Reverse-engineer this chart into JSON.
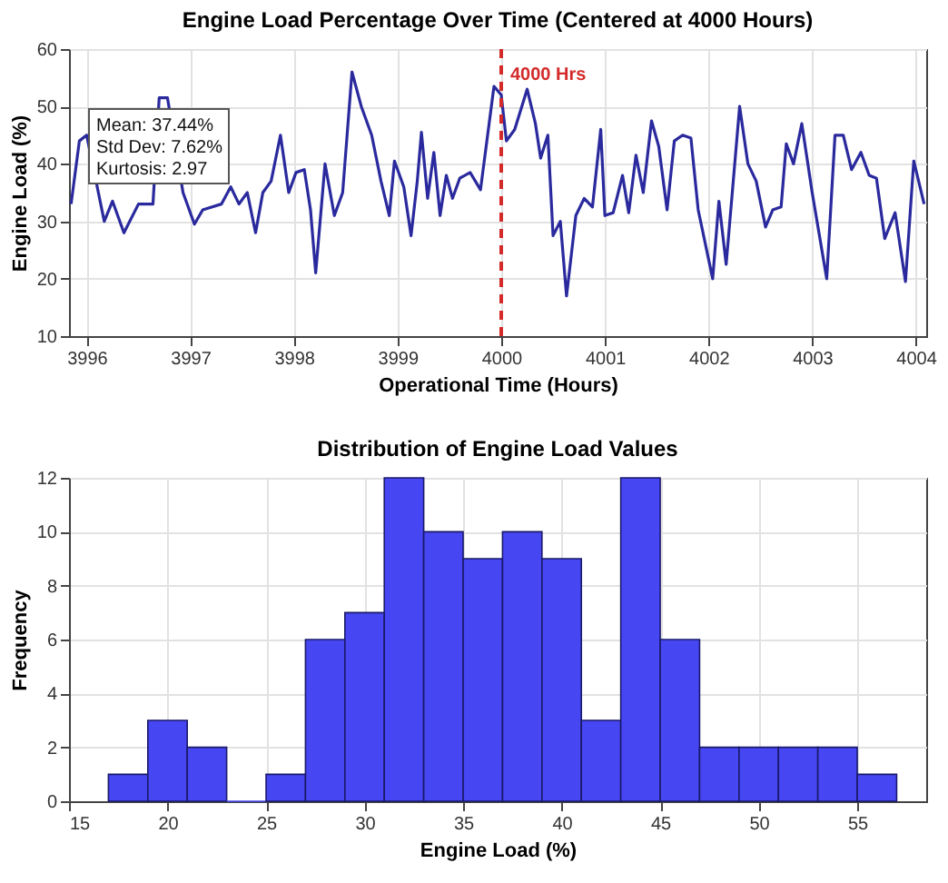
{
  "chart_data": [
    {
      "type": "line",
      "title": "Engine Load Percentage Over Time (Centered at 4000 Hours)",
      "xlabel": "Operational Time (Hours)",
      "ylabel": "Engine Load (%)",
      "x": [
        3995.85,
        3995.93,
        3996.0,
        3996.08,
        3996.17,
        3996.25,
        3996.36,
        3996.42,
        3996.5,
        3996.58,
        3996.64,
        3996.7,
        3996.78,
        3996.85,
        3996.93,
        3997.04,
        3997.12,
        3997.2,
        3997.3,
        3997.39,
        3997.47,
        3997.55,
        3997.63,
        3997.7,
        3997.78,
        3997.87,
        3997.95,
        3998.02,
        3998.1,
        3998.16,
        3998.21,
        3998.3,
        3998.39,
        3998.47,
        3998.56,
        3998.65,
        3998.75,
        3998.84,
        3998.92,
        3998.97,
        3999.06,
        3999.13,
        3999.19,
        3999.23,
        3999.29,
        3999.35,
        3999.41,
        3999.47,
        3999.53,
        3999.6,
        3999.7,
        3999.8,
        3999.93,
        4000.0,
        4000.05,
        4000.13,
        4000.25,
        4000.33,
        4000.38,
        4000.45,
        4000.5,
        4000.57,
        4000.63,
        4000.72,
        4000.8,
        4000.88,
        4000.96,
        4001.0,
        4001.08,
        4001.17,
        4001.23,
        4001.3,
        4001.37,
        4001.45,
        4001.52,
        4001.6,
        4001.67,
        4001.75,
        4001.83,
        4001.9,
        4002.04,
        4002.1,
        4002.17,
        4002.3,
        4002.38,
        4002.46,
        4002.55,
        4002.62,
        4002.7,
        4002.75,
        4002.82,
        4002.9,
        4003.0,
        4003.14,
        4003.22,
        4003.3,
        4003.38,
        4003.47,
        4003.55,
        4003.62,
        4003.7,
        4003.8,
        4003.9,
        4003.98,
        4004.08
      ],
      "series": [
        {
          "color": "#2a2a9e",
          "values": [
            33,
            44,
            45,
            null,
            30,
            33.5,
            28,
            null,
            33,
            null,
            33,
            51.5,
            51.5,
            null,
            35,
            29.5,
            32,
            null,
            33,
            36,
            33,
            35,
            28,
            35,
            37,
            45,
            35,
            38.5,
            39,
            32,
            21,
            40,
            31,
            35,
            56,
            50,
            45,
            37,
            31,
            40.5,
            36,
            27.5,
            37,
            45.5,
            34,
            42,
            31,
            38,
            34,
            37.5,
            38.5,
            35.5,
            53.5,
            52,
            44,
            46,
            53,
            47,
            41,
            45,
            27.5,
            30,
            17,
            31,
            34,
            32.5,
            46,
            31,
            31.5,
            38,
            31.5,
            41.5,
            35,
            47.5,
            43,
            32,
            44,
            45,
            44.5,
            32,
            20,
            33.5,
            22.5,
            50,
            40,
            37,
            29,
            32,
            32.5,
            43.5,
            40,
            47,
            35,
            20,
            45,
            45,
            39,
            42,
            38,
            37.5,
            27,
            31.5,
            19.5,
            40.5,
            33
          ]
        }
      ],
      "xlim": [
        3995.83,
        4004.1
      ],
      "xticks": [
        3996,
        3997,
        3998,
        3999,
        4000,
        4001,
        4002,
        4003,
        4004
      ],
      "ylim": [
        10,
        60
      ],
      "yticks": [
        10,
        20,
        30,
        40,
        50,
        60
      ],
      "grid": true,
      "line_style": "solid",
      "ref_lines": [
        {
          "axis": "x",
          "value": 4000,
          "label": "4000 Hrs",
          "color": "#d42a2a",
          "line_style": "dashed"
        }
      ],
      "annotations": [
        "Mean: 37.44%",
        "Std Dev: 7.62%",
        "Kurtosis: 2.97"
      ]
    },
    {
      "type": "histogram",
      "title": "Distribution of Engine Load Values",
      "xlabel": "Engine Load (%)",
      "ylabel": "Frequency",
      "bins": [
        17,
        19,
        21,
        23,
        25,
        27,
        29,
        31,
        33,
        35,
        37,
        39,
        41,
        43,
        45,
        47,
        49,
        51,
        53,
        55,
        57
      ],
      "values": [
        1,
        3,
        2,
        0,
        1,
        6,
        7,
        12,
        10,
        9,
        10,
        9,
        3,
        12,
        6,
        2,
        2,
        2,
        2,
        1
      ],
      "color": "#4646f2",
      "xlim": [
        15,
        58.5
      ],
      "xticks": [
        15,
        20,
        25,
        30,
        35,
        40,
        45,
        50,
        55
      ],
      "ylim": [
        0,
        12
      ],
      "yticks": [
        0,
        2,
        4,
        6,
        8,
        10,
        12
      ],
      "grid": true
    }
  ]
}
